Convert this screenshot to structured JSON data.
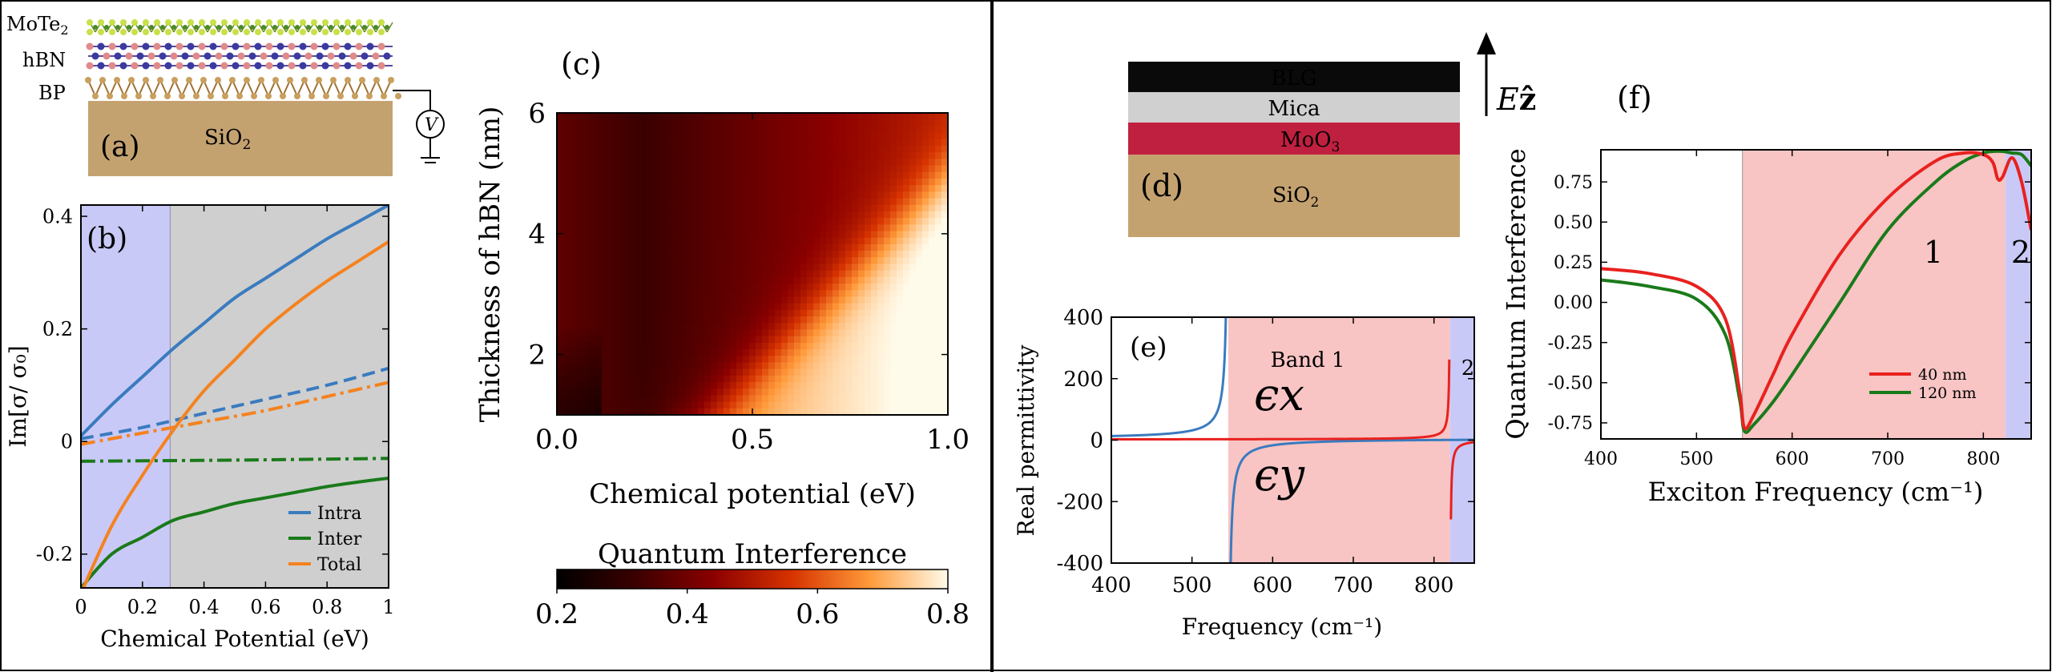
{
  "chart_data": [
    {
      "id": "a",
      "type": "diagram",
      "panel_label": "(a)",
      "layers": [
        "MoTe2",
        "hBN",
        "BP"
      ],
      "layer_labels": {
        "mote2": "MoTe",
        "mote2_sub": "2",
        "hbn": "hBN",
        "bp": "BP"
      },
      "substrate": {
        "label": "SiO",
        "sub": "2",
        "color": "#c4a270"
      },
      "voltage_label": "V"
    },
    {
      "id": "b",
      "type": "line",
      "panel_label": "(b)",
      "xlabel": "Chemical Potential (eV)",
      "ylabel": "Im[σ/ σ₀]",
      "xlim": [
        0,
        1
      ],
      "ylim": [
        -0.26,
        0.42
      ],
      "xticks": [
        0,
        0.2,
        0.4,
        0.6,
        0.8,
        1
      ],
      "xtick_labels": [
        "0",
        "0.2",
        "0.4",
        "0.6",
        "0.8",
        "1"
      ],
      "yticks": [
        -0.2,
        0,
        0.2,
        0.4
      ],
      "ytick_labels": [
        "-0.2",
        "0",
        "0.2",
        "0.4"
      ],
      "regions": [
        {
          "from": 0,
          "to": 0.29,
          "color": "#c9c9f7"
        },
        {
          "from": 0.29,
          "to": 1,
          "color": "#cfcfcf"
        }
      ],
      "series": [
        {
          "name": "Intra",
          "color": "#3a7bbf",
          "style": "solid",
          "x": [
            0,
            0.1,
            0.2,
            0.3,
            0.4,
            0.5,
            0.6,
            0.7,
            0.8,
            0.9,
            1.0
          ],
          "y": [
            0.01,
            0.065,
            0.115,
            0.165,
            0.21,
            0.255,
            0.29,
            0.325,
            0.36,
            0.39,
            0.42
          ]
        },
        {
          "name": "Intra (dashed)",
          "color": "#3a7bbf",
          "style": "dashed",
          "x": [
            0,
            0.2,
            0.4,
            0.6,
            0.8,
            1.0
          ],
          "y": [
            0.005,
            0.025,
            0.05,
            0.075,
            0.1,
            0.13
          ]
        },
        {
          "name": "Inter",
          "color": "#1a7a1a",
          "style": "solid",
          "x": [
            0,
            0.1,
            0.2,
            0.3,
            0.4,
            0.5,
            0.6,
            0.7,
            0.8,
            0.9,
            1.0
          ],
          "y": [
            -0.26,
            -0.2,
            -0.17,
            -0.14,
            -0.125,
            -0.11,
            -0.1,
            -0.09,
            -0.08,
            -0.072,
            -0.065
          ]
        },
        {
          "name": "Inter (dash-dot)",
          "color": "#1a7a1a",
          "style": "dashdot",
          "x": [
            0,
            0.5,
            1.0
          ],
          "y": [
            -0.035,
            -0.033,
            -0.03
          ]
        },
        {
          "name": "Total",
          "color": "#f5821f",
          "style": "solid",
          "x": [
            0,
            0.1,
            0.2,
            0.3,
            0.4,
            0.5,
            0.6,
            0.7,
            0.8,
            0.9,
            1.0
          ],
          "y": [
            -0.27,
            -0.15,
            -0.06,
            0.02,
            0.09,
            0.145,
            0.2,
            0.245,
            0.285,
            0.32,
            0.355
          ]
        },
        {
          "name": "Total (dash-dot)",
          "color": "#f5821f",
          "style": "dashdot",
          "x": [
            0,
            0.2,
            0.4,
            0.6,
            0.8,
            1.0
          ],
          "y": [
            -0.005,
            0.015,
            0.035,
            0.055,
            0.08,
            0.105
          ]
        }
      ],
      "legend": {
        "position": "bottom-right",
        "entries": [
          {
            "label": "Intra",
            "color": "#3a7bbf"
          },
          {
            "label": "Inter",
            "color": "#1a7a1a"
          },
          {
            "label": "Total",
            "color": "#f5821f"
          }
        ]
      }
    },
    {
      "id": "c",
      "type": "heatmap",
      "panel_label": "(c)",
      "xlabel": "Chemical potential (eV)",
      "ylabel": "Thickness of hBN (nm)",
      "xlim": [
        0,
        1
      ],
      "ylim": [
        1,
        6
      ],
      "xticks": [
        0,
        0.5,
        1
      ],
      "xtick_labels": [
        "0.0",
        "0.5",
        "1.0"
      ],
      "yticks": [
        2,
        4,
        6
      ],
      "ytick_labels": [
        "2",
        "4",
        "6"
      ],
      "colorbar": {
        "label": "Quantum Interference",
        "min": 0.2,
        "max": 0.8,
        "ticks": [
          0.2,
          0.4,
          0.6,
          0.8
        ],
        "tick_labels": [
          "0.2",
          "0.4",
          "0.6",
          "0.8"
        ]
      }
    },
    {
      "id": "d",
      "type": "diagram",
      "panel_label": "(d)",
      "layers": [
        {
          "label": "BLG",
          "color": "#0a0a0a",
          "text_color": "#ffffff"
        },
        {
          "label": "Mica",
          "color": "#d0d0d0",
          "text_color": "#000000"
        },
        {
          "label": "MoO",
          "sub": "3",
          "color": "#c0203f",
          "text_color": "#ffffff"
        },
        {
          "label": "SiO",
          "sub": "2",
          "color": "#c4a270",
          "text_color": "#000000"
        }
      ],
      "field_label": "E",
      "field_dir": "ẑ"
    },
    {
      "id": "e",
      "type": "line",
      "panel_label": "(e)",
      "xlabel": "Frequency (cm⁻¹)",
      "ylabel": "Real permittivity",
      "xlim": [
        400,
        850
      ],
      "ylim": [
        -400,
        400
      ],
      "xticks": [
        400,
        500,
        600,
        700,
        800
      ],
      "xtick_labels": [
        "400",
        "500",
        "600",
        "700",
        "800"
      ],
      "yticks": [
        -400,
        -200,
        0,
        200,
        400
      ],
      "ytick_labels": [
        "-400",
        "-200",
        "0",
        "200",
        "400"
      ],
      "regions": [
        {
          "from": 545,
          "to": 820,
          "color": "#f8c4c4",
          "label": "Band 1"
        },
        {
          "from": 820,
          "to": 850,
          "color": "#c9c9f7",
          "label": "2"
        }
      ],
      "annotations": [
        {
          "text": "ϵx",
          "color": "#e8211e"
        },
        {
          "text": "ϵy",
          "color": "#3a7bbf"
        }
      ],
      "series": [
        {
          "name": "epsilon_x",
          "color": "#e8211e"
        },
        {
          "name": "epsilon_y",
          "color": "#3a7bbf"
        }
      ]
    },
    {
      "id": "f",
      "type": "line",
      "panel_label": "(f)",
      "xlabel": "Exciton Frequency (cm⁻¹)",
      "ylabel": "Quantum Interference",
      "xlim": [
        400,
        850
      ],
      "ylim": [
        -0.85,
        0.95
      ],
      "xticks": [
        400,
        500,
        600,
        700,
        800
      ],
      "xtick_labels": [
        "400",
        "500",
        "600",
        "700",
        "800"
      ],
      "yticks": [
        -0.75,
        -0.5,
        -0.25,
        0,
        0.25,
        0.5,
        0.75
      ],
      "ytick_labels": [
        "-0.75",
        "-0.50",
        "-0.25",
        "0.00",
        "0.25",
        "0.50",
        "0.75"
      ],
      "regions": [
        {
          "from": 548,
          "to": 823,
          "color": "#f8c4c4",
          "label": "1"
        },
        {
          "from": 823,
          "to": 850,
          "color": "#c9c9f7",
          "label": "2"
        }
      ],
      "series": [
        {
          "name": "40 nm",
          "color": "#e8211e",
          "x": [
            400,
            450,
            500,
            530,
            545,
            550,
            560,
            580,
            600,
            650,
            700,
            750,
            780,
            800,
            810,
            815,
            820,
            830,
            840,
            850
          ],
          "y": [
            0.21,
            0.18,
            0.1,
            -0.1,
            -0.55,
            -0.78,
            -0.7,
            -0.45,
            -0.2,
            0.3,
            0.65,
            0.88,
            0.93,
            0.92,
            0.87,
            0.77,
            0.78,
            0.9,
            0.75,
            0.45
          ]
        },
        {
          "name": "120 nm",
          "color": "#1a7a1a",
          "x": [
            400,
            450,
            500,
            530,
            545,
            550,
            560,
            580,
            600,
            650,
            700,
            750,
            780,
            800,
            810,
            820,
            830,
            840,
            850
          ],
          "y": [
            0.14,
            0.1,
            0.02,
            -0.2,
            -0.6,
            -0.8,
            -0.76,
            -0.62,
            -0.45,
            0.0,
            0.45,
            0.75,
            0.88,
            0.93,
            0.94,
            0.94,
            0.93,
            0.92,
            0.85
          ]
        }
      ],
      "legend": {
        "position": "bottom-right",
        "entries": [
          {
            "label": "40 nm",
            "color": "#e8211e"
          },
          {
            "label": "120 nm",
            "color": "#1a7a1a"
          }
        ]
      }
    }
  ]
}
